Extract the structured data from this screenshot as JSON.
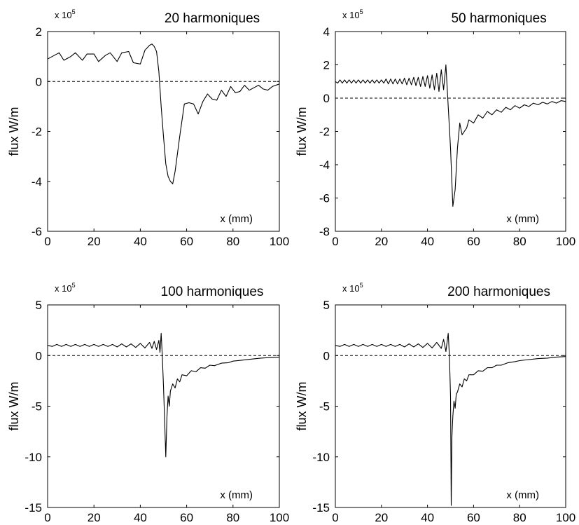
{
  "figure": {
    "tick_color": "#000000",
    "line_color": "#000000",
    "background": "#ffffff"
  },
  "chart_data": [
    {
      "type": "line",
      "title": "20 harmoniques",
      "ylabel": "flux W/m",
      "xlabel": "x (mm)",
      "y_exponent_label": "x 10",
      "y_exponent": "5",
      "xlim": [
        0,
        100
      ],
      "ylim": [
        -6,
        2
      ],
      "x_ticks": [
        "0",
        "20",
        "40",
        "60",
        "80",
        "100"
      ],
      "y_ticks": [
        "-6",
        "-4",
        "-2",
        "0",
        "2"
      ],
      "reference_line": {
        "y": 0,
        "style": "dashed"
      },
      "series": [
        {
          "x": [
            0,
            3,
            5,
            7,
            10,
            12,
            15,
            17,
            20,
            22,
            25,
            27,
            30,
            32,
            35,
            37,
            40,
            42,
            44,
            45,
            46,
            47,
            48,
            49,
            50,
            51,
            52,
            53,
            54,
            55,
            57,
            59,
            61,
            63,
            65,
            67,
            69,
            71,
            73,
            75,
            77,
            79,
            81,
            83,
            85,
            87,
            89,
            91,
            93,
            95,
            97,
            100
          ],
          "y": [
            0.9,
            1.05,
            1.15,
            0.85,
            1.0,
            1.15,
            0.85,
            1.1,
            1.1,
            0.8,
            1.05,
            1.15,
            0.8,
            1.15,
            1.2,
            0.75,
            0.7,
            1.25,
            1.45,
            1.5,
            1.4,
            1.2,
            0.4,
            -1.0,
            -2.2,
            -3.3,
            -3.8,
            -4.0,
            -4.1,
            -3.6,
            -2.2,
            -0.9,
            -0.85,
            -0.9,
            -1.3,
            -0.8,
            -0.5,
            -0.7,
            -0.75,
            -0.35,
            -0.6,
            -0.2,
            -0.45,
            -0.4,
            -0.15,
            -0.35,
            -0.25,
            -0.15,
            -0.3,
            -0.35,
            -0.2,
            -0.1
          ]
        }
      ]
    },
    {
      "type": "line",
      "title": "50 harmoniques",
      "ylabel": "flux W/m",
      "xlabel": "x (mm)",
      "y_exponent_label": "x 10",
      "y_exponent": "5",
      "xlim": [
        0,
        100
      ],
      "ylim": [
        -8,
        4
      ],
      "x_ticks": [
        "0",
        "20",
        "40",
        "60",
        "80",
        "100"
      ],
      "y_ticks": [
        "-8",
        "-6",
        "-4",
        "-2",
        "0",
        "2",
        "4"
      ],
      "reference_line": {
        "y": 0,
        "style": "dashed"
      },
      "series": [
        {
          "x": [
            0,
            1,
            2,
            3,
            4,
            5,
            6,
            7,
            8,
            9,
            10,
            11,
            12,
            13,
            14,
            15,
            16,
            17,
            18,
            19,
            20,
            21,
            22,
            23,
            24,
            25,
            26,
            27,
            28,
            29,
            30,
            31,
            32,
            33,
            34,
            35,
            36,
            37,
            38,
            39,
            40,
            41,
            42,
            43,
            44,
            45,
            46,
            47,
            48,
            49,
            50,
            51,
            52,
            53,
            54,
            55,
            56,
            57,
            58,
            60,
            62,
            64,
            66,
            68,
            70,
            72,
            74,
            76,
            78,
            80,
            82,
            84,
            86,
            88,
            90,
            92,
            94,
            96,
            98,
            100
          ],
          "y": [
            1.0,
            0.9,
            1.1,
            0.9,
            1.1,
            0.9,
            1.1,
            0.9,
            1.1,
            0.9,
            1.1,
            0.9,
            1.1,
            0.9,
            1.1,
            0.9,
            1.1,
            0.9,
            1.1,
            0.9,
            1.1,
            0.9,
            1.15,
            0.85,
            1.15,
            0.85,
            1.15,
            0.85,
            1.15,
            0.85,
            1.2,
            0.8,
            1.2,
            0.8,
            1.25,
            0.75,
            1.25,
            0.7,
            1.3,
            0.7,
            1.35,
            0.6,
            1.4,
            0.5,
            1.5,
            0.4,
            1.7,
            0.5,
            2.0,
            -0.5,
            -3.0,
            -6.5,
            -5.5,
            -3.0,
            -1.5,
            -2.2,
            -2.0,
            -1.8,
            -1.3,
            -1.5,
            -1.0,
            -1.2,
            -0.8,
            -1.0,
            -0.7,
            -0.85,
            -0.55,
            -0.7,
            -0.45,
            -0.6,
            -0.4,
            -0.5,
            -0.3,
            -0.4,
            -0.25,
            -0.35,
            -0.2,
            -0.3,
            -0.15,
            -0.2
          ]
        }
      ]
    },
    {
      "type": "line",
      "title": "100 harmoniques",
      "ylabel": "flux W/m",
      "xlabel": "x (mm)",
      "y_exponent_label": "x 10",
      "y_exponent": "5",
      "xlim": [
        0,
        100
      ],
      "ylim": [
        -15,
        5
      ],
      "x_ticks": [
        "0",
        "20",
        "40",
        "60",
        "80",
        "100"
      ],
      "y_ticks": [
        "-15",
        "-10",
        "-5",
        "0",
        "5"
      ],
      "reference_line": {
        "y": 0,
        "style": "dashed"
      },
      "series": [
        {
          "x": [
            0,
            2,
            4,
            6,
            8,
            10,
            12,
            14,
            16,
            18,
            20,
            22,
            24,
            26,
            28,
            30,
            32,
            34,
            36,
            38,
            40,
            42,
            44,
            45,
            46,
            47,
            48,
            48.5,
            49,
            49.5,
            50,
            50.5,
            51,
            51.5,
            52,
            52.5,
            53,
            54,
            55,
            56,
            57,
            58,
            60,
            62,
            64,
            66,
            68,
            70,
            72,
            75,
            78,
            80,
            84,
            88,
            92,
            96,
            100
          ],
          "y": [
            1.0,
            0.9,
            1.1,
            0.9,
            1.1,
            0.9,
            1.1,
            0.9,
            1.1,
            0.9,
            1.1,
            0.9,
            1.1,
            0.9,
            1.1,
            0.85,
            1.15,
            0.85,
            1.15,
            0.8,
            1.2,
            0.75,
            1.3,
            0.7,
            1.4,
            0.6,
            1.5,
            0.3,
            2.2,
            0.0,
            -3.0,
            -6.5,
            -10.0,
            -6.0,
            -4.0,
            -5.0,
            -3.5,
            -2.8,
            -3.2,
            -2.3,
            -2.6,
            -1.9,
            -2.0,
            -1.5,
            -1.6,
            -1.2,
            -1.25,
            -0.95,
            -1.0,
            -0.75,
            -0.7,
            -0.55,
            -0.45,
            -0.35,
            -0.25,
            -0.2,
            -0.15
          ]
        }
      ]
    },
    {
      "type": "line",
      "title": "200 harmoniques",
      "ylabel": "flux W/m",
      "xlabel": "x (mm)",
      "y_exponent_label": "x 10",
      "y_exponent": "5",
      "xlim": [
        0,
        100
      ],
      "ylim": [
        -15,
        5
      ],
      "x_ticks": [
        "0",
        "20",
        "40",
        "60",
        "80",
        "100"
      ],
      "y_ticks": [
        "-15",
        "-10",
        "-5",
        "0",
        "5"
      ],
      "reference_line": {
        "y": 0,
        "style": "dashed"
      },
      "series": [
        {
          "x": [
            0,
            2,
            4,
            6,
            8,
            10,
            12,
            14,
            16,
            18,
            20,
            22,
            24,
            26,
            28,
            30,
            32,
            34,
            36,
            38,
            40,
            42,
            44,
            46,
            47,
            48,
            49,
            49.5,
            50,
            50.3,
            50.6,
            51,
            51.5,
            52,
            52.5,
            53,
            54,
            55,
            56,
            57,
            58,
            60,
            62,
            64,
            66,
            68,
            70,
            72,
            75,
            78,
            80,
            84,
            88,
            92,
            96,
            100
          ],
          "y": [
            1.0,
            0.9,
            1.1,
            0.9,
            1.1,
            0.9,
            1.1,
            0.9,
            1.1,
            0.9,
            1.1,
            0.9,
            1.1,
            0.9,
            1.1,
            0.85,
            1.15,
            0.85,
            1.15,
            0.8,
            1.2,
            0.75,
            1.3,
            0.7,
            1.6,
            0.4,
            2.2,
            0.0,
            -4.0,
            -14.8,
            -8.0,
            -6.0,
            -4.5,
            -5.2,
            -3.8,
            -3.6,
            -2.8,
            -3.1,
            -2.3,
            -2.5,
            -1.9,
            -1.9,
            -1.5,
            -1.55,
            -1.2,
            -1.2,
            -0.95,
            -0.95,
            -0.7,
            -0.6,
            -0.5,
            -0.4,
            -0.3,
            -0.25,
            -0.15,
            -0.1
          ]
        }
      ]
    }
  ]
}
